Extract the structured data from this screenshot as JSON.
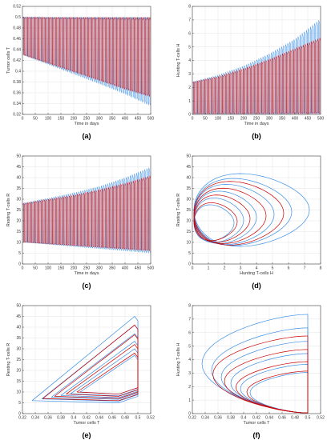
{
  "chart_data": [
    {
      "id": "a",
      "type": "line",
      "caption": "(a)",
      "xlabel": "Time in days",
      "ylabel": "Tumor cells T",
      "xlim": [
        0,
        500
      ],
      "ylim": [
        0.32,
        0.52
      ],
      "xticks": [
        "0",
        "50",
        "100",
        "150",
        "200",
        "250",
        "300",
        "350",
        "400",
        "450",
        "500"
      ],
      "yticks": [
        "0.32",
        "0.34",
        "0.36",
        "0.38",
        "0.4",
        "0.42",
        "0.44",
        "0.46",
        "0.48",
        "0.5",
        "0.52"
      ],
      "grid": true,
      "series": [
        {
          "color": "#3a8ee6",
          "x": [
            0,
            100,
            200,
            300,
            400,
            500
          ],
          "y_upper": [
            0.5,
            0.5,
            0.5,
            0.5,
            0.5,
            0.5
          ],
          "y_lower": [
            0.43,
            0.412,
            0.394,
            0.376,
            0.357,
            0.335
          ]
        },
        {
          "color": "#cc0000",
          "x": [
            0,
            100,
            200,
            300,
            400,
            500
          ],
          "y_upper": [
            0.5,
            0.5,
            0.5,
            0.5,
            0.5,
            0.5
          ],
          "y_lower": [
            0.43,
            0.414,
            0.398,
            0.382,
            0.366,
            0.352
          ]
        }
      ],
      "oscillations": 62
    },
    {
      "id": "b",
      "type": "line",
      "caption": "(b)",
      "xlabel": "Time in days",
      "ylabel": "Hunting T-cells H",
      "xlim": [
        0,
        500
      ],
      "ylim": [
        0,
        8
      ],
      "xticks": [
        "0",
        "50",
        "100",
        "150",
        "200",
        "250",
        "300",
        "350",
        "400",
        "450",
        "500"
      ],
      "yticks": [
        "0",
        "1",
        "2",
        "3",
        "4",
        "5",
        "6",
        "7",
        "8"
      ],
      "grid": true,
      "series": [
        {
          "color": "#3a8ee6",
          "x": [
            0,
            100,
            200,
            300,
            400,
            500
          ],
          "y_upper": [
            2.4,
            2.9,
            3.6,
            4.5,
            5.6,
            7.1
          ],
          "y_lower": [
            0.05,
            0.05,
            0.05,
            0.05,
            0.05,
            0.05
          ]
        },
        {
          "color": "#cc0000",
          "x": [
            0,
            100,
            200,
            300,
            400,
            500
          ],
          "y_upper": [
            2.4,
            2.8,
            3.4,
            4.1,
            4.9,
            5.7
          ],
          "y_lower": [
            0.05,
            0.05,
            0.05,
            0.05,
            0.05,
            0.05
          ]
        }
      ],
      "oscillations": 62
    },
    {
      "id": "c",
      "type": "line",
      "caption": "(c)",
      "xlabel": "Time in days",
      "ylabel": "Resting T-cells R",
      "xlim": [
        0,
        500
      ],
      "ylim": [
        0,
        50
      ],
      "xticks": [
        "0",
        "50",
        "100",
        "150",
        "200",
        "250",
        "300",
        "350",
        "400",
        "450",
        "500"
      ],
      "yticks": [
        "0",
        "5",
        "10",
        "15",
        "20",
        "25",
        "30",
        "35",
        "40",
        "45",
        "50"
      ],
      "grid": true,
      "series": [
        {
          "color": "#3a8ee6",
          "x": [
            0,
            100,
            200,
            300,
            400,
            500
          ],
          "y_upper": [
            28,
            30.5,
            33,
            36,
            40,
            45
          ],
          "y_lower": [
            10,
            9,
            8,
            7,
            6,
            5
          ]
        },
        {
          "color": "#cc0000",
          "x": [
            0,
            100,
            200,
            300,
            400,
            500
          ],
          "y_upper": [
            28,
            30,
            32,
            34.5,
            37.5,
            41
          ],
          "y_lower": [
            10,
            9.2,
            8.4,
            7.6,
            6.8,
            6
          ]
        }
      ],
      "oscillations": 62
    },
    {
      "id": "d",
      "type": "line",
      "caption": "(d)",
      "xlabel": "Hunting T-cells H",
      "ylabel": "Resting T-cells R",
      "xlim": [
        0,
        8
      ],
      "ylim": [
        0,
        50
      ],
      "xticks": [
        "0",
        "1",
        "2",
        "3",
        "4",
        "5",
        "6",
        "7",
        "8"
      ],
      "yticks": [
        "0",
        "5",
        "10",
        "15",
        "20",
        "25",
        "30",
        "35",
        "40",
        "45",
        "50"
      ],
      "grid": true,
      "series": [
        {
          "color": "#3a8ee6",
          "loops": [
            {
              "xmax": 7.3,
              "rmax": 45,
              "rmin": 5
            },
            {
              "xmax": 6.2,
              "rmax": 42.5,
              "rmin": 5.7
            },
            {
              "xmax": 5.1,
              "rmax": 39.5,
              "rmin": 6.4
            },
            {
              "xmax": 4.0,
              "rmax": 36,
              "rmin": 7.2
            },
            {
              "xmax": 3.2,
              "rmax": 32.5,
              "rmin": 8
            },
            {
              "xmax": 2.6,
              "rmax": 29,
              "rmin": 9
            }
          ]
        },
        {
          "color": "#cc0000",
          "loops": [
            {
              "xmax": 5.7,
              "rmax": 41,
              "rmin": 6
            },
            {
              "xmax": 4.6,
              "rmax": 37.5,
              "rmin": 7
            },
            {
              "xmax": 3.6,
              "rmax": 34,
              "rmin": 8
            },
            {
              "xmax": 2.8,
              "rmax": 30,
              "rmin": 9.2
            }
          ]
        }
      ]
    },
    {
      "id": "e",
      "type": "line",
      "caption": "(e)",
      "xlabel": "Tumor cells T",
      "ylabel": "Resting T-cells R",
      "xlim": [
        0.32,
        0.52
      ],
      "ylim": [
        0,
        50
      ],
      "xticks": [
        "0.32",
        "0.34",
        "0.36",
        "0.38",
        "0.4",
        "0.42",
        "0.44",
        "0.46",
        "0.48",
        "0.5",
        "0.52"
      ],
      "yticks": [
        "0",
        "5",
        "10",
        "15",
        "20",
        "25",
        "30",
        "35",
        "40",
        "45",
        "50"
      ],
      "grid": true,
      "series": [
        {
          "color": "#3a8ee6",
          "loops": [
            {
              "tmin": 0.335,
              "rmax": 45,
              "rmin": 5
            },
            {
              "tmin": 0.35,
              "rmax": 41,
              "rmin": 5.8
            },
            {
              "tmin": 0.365,
              "rmax": 37,
              "rmin": 6.6
            },
            {
              "tmin": 0.38,
              "rmax": 33.5,
              "rmin": 7.4
            },
            {
              "tmin": 0.395,
              "rmax": 30,
              "rmin": 8.2
            },
            {
              "tmin": 0.41,
              "rmax": 27,
              "rmin": 9
            }
          ]
        },
        {
          "color": "#cc0000",
          "loops": [
            {
              "tmin": 0.352,
              "rmax": 41,
              "rmin": 6
            },
            {
              "tmin": 0.37,
              "rmax": 36.5,
              "rmin": 7
            },
            {
              "tmin": 0.388,
              "rmax": 32,
              "rmin": 8
            },
            {
              "tmin": 0.405,
              "rmax": 28,
              "rmin": 9
            }
          ]
        }
      ]
    },
    {
      "id": "f",
      "type": "line",
      "caption": "(f)",
      "xlabel": "Tumor cells T",
      "ylabel": "Hunting T-cells H",
      "xlim": [
        0.32,
        0.52
      ],
      "ylim": [
        0,
        8
      ],
      "xticks": [
        "0.32",
        "0.34",
        "0.36",
        "0.38",
        "0.4",
        "0.42",
        "0.44",
        "0.46",
        "0.48",
        "0.5",
        "0.52"
      ],
      "yticks": [
        "0",
        "1",
        "2",
        "3",
        "4",
        "5",
        "6",
        "7",
        "8"
      ],
      "grid": true,
      "series": [
        {
          "color": "#3a8ee6",
          "loops": [
            {
              "tmin": 0.335,
              "hmax": 7.3
            },
            {
              "tmin": 0.35,
              "hmax": 6.3
            },
            {
              "tmin": 0.365,
              "hmax": 5.3
            },
            {
              "tmin": 0.38,
              "hmax": 4.4
            },
            {
              "tmin": 0.395,
              "hmax": 3.6
            },
            {
              "tmin": 0.41,
              "hmax": 3.0
            }
          ]
        },
        {
          "color": "#cc0000",
          "loops": [
            {
              "tmin": 0.352,
              "hmax": 5.7
            },
            {
              "tmin": 0.37,
              "hmax": 4.7
            },
            {
              "tmin": 0.388,
              "hmax": 3.8
            },
            {
              "tmin": 0.405,
              "hmax": 3.1
            }
          ]
        }
      ]
    }
  ]
}
